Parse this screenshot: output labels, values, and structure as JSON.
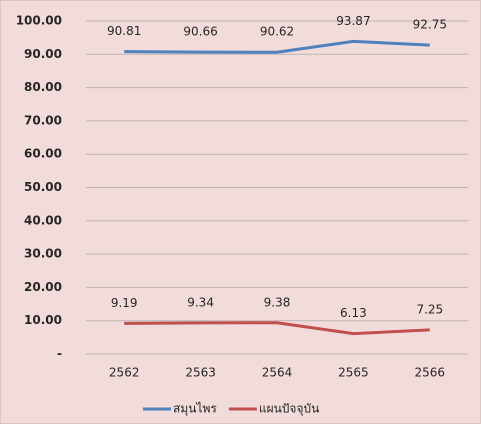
{
  "chart_data": {
    "type": "line",
    "categories": [
      "2562",
      "2563",
      "2564",
      "2565",
      "2566"
    ],
    "series": [
      {
        "name": "สมุนไพร",
        "color": "#4f81bd",
        "values": [
          90.81,
          90.66,
          90.62,
          93.87,
          92.75
        ]
      },
      {
        "name": "แผนปัจจุบัน",
        "color": "#c0504d",
        "values": [
          9.19,
          9.34,
          9.38,
          6.13,
          7.25
        ]
      }
    ],
    "ylim": [
      0,
      100
    ],
    "yticks": [
      {
        "value": 0,
        "label": "-"
      },
      {
        "value": 10,
        "label": "10.00"
      },
      {
        "value": 20,
        "label": "20.00"
      },
      {
        "value": 30,
        "label": "30.00"
      },
      {
        "value": 40,
        "label": "40.00"
      },
      {
        "value": 50,
        "label": "50.00"
      },
      {
        "value": 60,
        "label": "60.00"
      },
      {
        "value": 70,
        "label": "70.00"
      },
      {
        "value": 80,
        "label": "80.00"
      },
      {
        "value": 90,
        "label": "90.00"
      },
      {
        "value": 100,
        "label": "100.00"
      }
    ],
    "grid": true,
    "legend": "bottom"
  }
}
